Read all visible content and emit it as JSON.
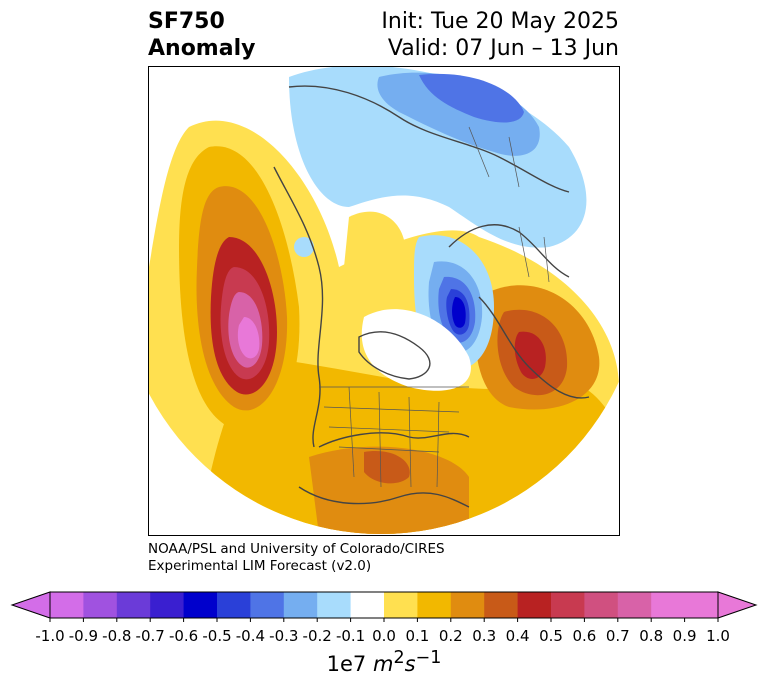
{
  "header": {
    "title_line1": "SF750",
    "title_line2": "Anomaly",
    "init_text": "Init: Tue 20 May 2025",
    "valid_text": "Valid: 07 Jun – 13 Jun"
  },
  "credits": {
    "line1": "NOAA/PSL and University of Colorado/CIRES",
    "line2": "Experimental LIM Forecast (v2.0)"
  },
  "colorbar": {
    "tick_labels": [
      "-1.0",
      "-0.9",
      "-0.8",
      "-0.7",
      "-0.6",
      "-0.5",
      "-0.4",
      "-0.3",
      "-0.2",
      "-0.1",
      "0.0",
      "0.1",
      "0.2",
      "0.3",
      "0.4",
      "0.5",
      "0.6",
      "0.7",
      "0.8",
      "0.9",
      "1.0"
    ],
    "colors": [
      "#d36de8",
      "#a052e0",
      "#6b3bd8",
      "#3a1fd0",
      "#0000cc",
      "#2a40d8",
      "#4f74e6",
      "#75aef0",
      "#a8dcfc",
      "#ffffff",
      "#ffe050",
      "#f2b800",
      "#e08c10",
      "#c85a18",
      "#b82222",
      "#c83a50",
      "#d05080",
      "#d862a8",
      "#e878d8"
    ],
    "units_prefix": "1e7 ",
    "units_var": "m",
    "units_exp1": "2",
    "units_var2": "s",
    "units_exp2": "−1"
  },
  "map": {
    "projection": "north-polar-stereographic",
    "field": "750 hPa streamfunction anomaly"
  }
}
